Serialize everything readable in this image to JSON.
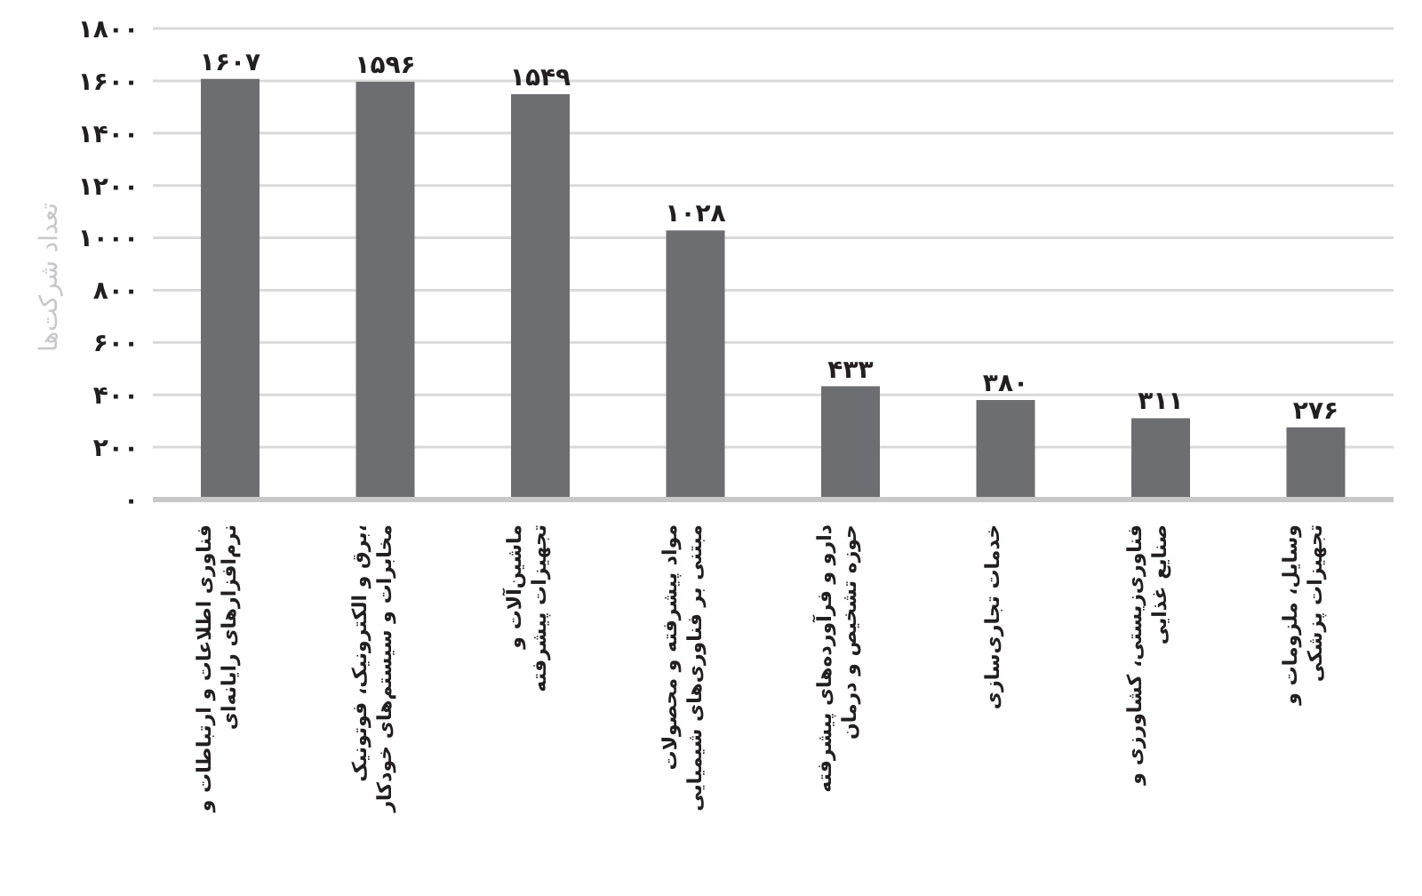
{
  "chart_data": {
    "type": "bar",
    "ylabel": "تعداد شرکت‌ها",
    "categories": [
      "فناوری اطلاعات و ارتباطات و\nنرم‌افزارهای رایانه‌ای",
      "برق و الکترونیک، فوتونیک،\nمخابرات و سیستم‌های خودکار",
      "ماشین‌آلات و\nتجهیزات پیشرفته",
      "مواد پیشرفته و محصولات\nمبتنی بر فناوری‌های شیمیایی",
      "دارو و فرآورده‌های پیشرفته\nحوزه تشخیص و درمان",
      "خدمات تجاری‌سازی",
      "فناوری‌زیستی، کشاورزی و\nصنایع غذایی",
      "وسایل، ملزومات و\nتجهیزات پزشکی"
    ],
    "values": [
      1607,
      1596,
      1549,
      1028,
      433,
      380,
      311,
      276
    ],
    "value_labels": [
      "۱۶۰۷",
      "۱۵۹۶",
      "۱۵۴۹",
      "۱۰۲۸",
      "۴۳۳",
      "۳۸۰",
      "۳۱۱",
      "۲۷۶"
    ],
    "color": "#6d6e71",
    "ylim": [
      0,
      1800
    ],
    "yticks": [
      {
        "value": 0,
        "label": "۰"
      },
      {
        "value": 200,
        "label": "۲۰۰"
      },
      {
        "value": 400,
        "label": "۴۰۰"
      },
      {
        "value": 600,
        "label": "۶۰۰"
      },
      {
        "value": 800,
        "label": "۸۰۰"
      },
      {
        "value": 1000,
        "label": "۱۰۰۰"
      },
      {
        "value": 1200,
        "label": "۱۲۰۰"
      },
      {
        "value": 1400,
        "label": "۱۴۰۰"
      },
      {
        "value": 1600,
        "label": "۱۶۰۰"
      },
      {
        "value": 1800,
        "label": "۱۸۰۰"
      }
    ],
    "grid": "y"
  }
}
